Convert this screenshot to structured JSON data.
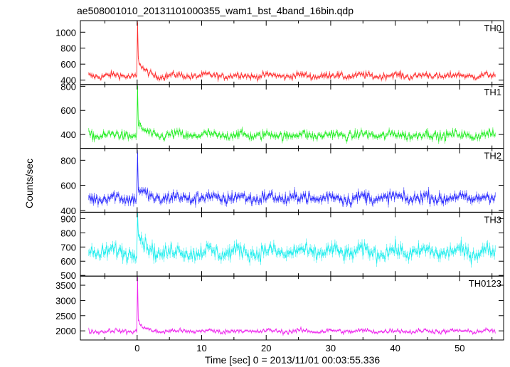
{
  "chart_data": {
    "type": "line",
    "title": "ae508001010_20131101000355_wam1_bst_4band_16bin.qdp",
    "xlabel": "Time [sec] 0 = 2013/11/01 00:03:55.336",
    "ylabel": "Counts/sec",
    "xlim": [
      -8.8,
      56.8
    ],
    "xticks": [
      0,
      10,
      20,
      30,
      40,
      50
    ],
    "x_start": -7.5,
    "x_end": 55.5,
    "grid": false,
    "error_bars": true,
    "panels": [
      {
        "name": "TH0",
        "color": "#ff2a2a",
        "ylim": [
          345,
          1145
        ],
        "yticks": [
          400,
          600,
          800,
          1000
        ],
        "baseline": 455,
        "noise": 40,
        "peak": 1120,
        "after": 620
      },
      {
        "name": "TH1",
        "color": "#22ee22",
        "ylim": [
          285,
          815
        ],
        "yticks": [
          400,
          600,
          800
        ],
        "baseline": 395,
        "noise": 35,
        "peak": 800,
        "after": 470
      },
      {
        "name": "TH2",
        "color": "#2a2aff",
        "ylim": [
          385,
          895
        ],
        "yticks": [
          400,
          600,
          800
        ],
        "baseline": 500,
        "noise": 45,
        "peak": 860,
        "after": 560
      },
      {
        "name": "TH3",
        "color": "#22eeee",
        "ylim": [
          495,
          945
        ],
        "yticks": [
          500,
          600,
          700,
          800,
          900
        ],
        "baseline": 665,
        "noise": 50,
        "peak": 940,
        "after": 780
      },
      {
        "name": "TH0123",
        "color": "#ee22ee",
        "ylim": [
          1700,
          3800
        ],
        "yticks": [
          2000,
          2500,
          3000,
          3500
        ],
        "baseline": 1990,
        "noise": 70,
        "peak": 3750,
        "after": 2250
      }
    ]
  }
}
